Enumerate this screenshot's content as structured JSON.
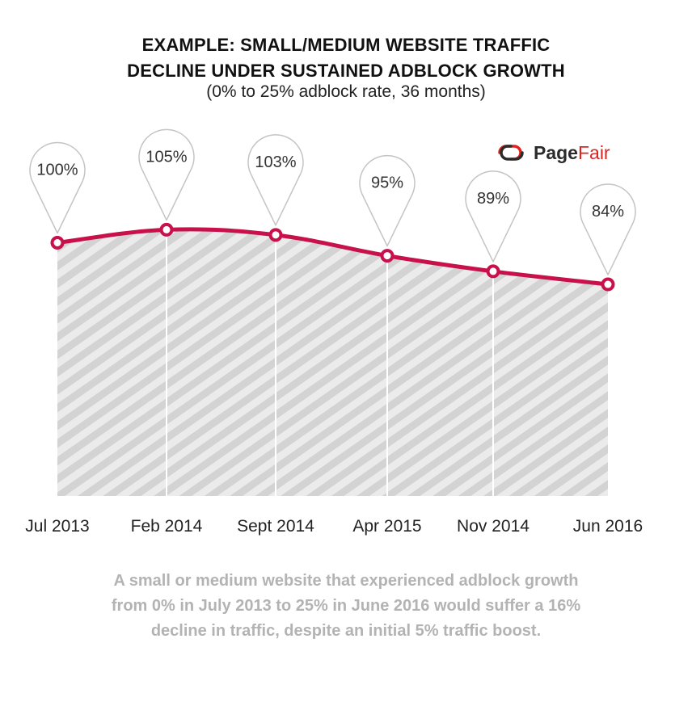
{
  "header": {
    "title_line1": "EXAMPLE: SMALL/MEDIUM WEBSITE TRAFFIC",
    "title_line2": "DECLINE UNDER SUSTAINED ADBLOCK GROWTH",
    "subtitle": "(0% to 25% adblock rate, 36 months)"
  },
  "logo": {
    "icon": "pagefair-logo-icon",
    "text_part1": "Page",
    "text_part2": "Fair"
  },
  "chart_data": {
    "type": "area",
    "categories": [
      "Jul 2013",
      "Feb 2014",
      "Sept 2014",
      "Apr 2015",
      "Nov 2014",
      "Jun 2016"
    ],
    "values": [
      100,
      105,
      103,
      95,
      89,
      84
    ],
    "data_labels": [
      "100%",
      "105%",
      "103%",
      "95%",
      "89%",
      "84%"
    ],
    "colors": {
      "line": "#c8104a",
      "fill_stripe": "#d3d3d3",
      "fill_bg": "#ebebeb",
      "pin_stroke": "#c4c4c4"
    }
  },
  "caption": "A small or medium website that experienced adblock growth from 0% in July 2013 to 25% in June 2016 would suffer a 16% decline in traffic, despite an initial 5% traffic boost."
}
